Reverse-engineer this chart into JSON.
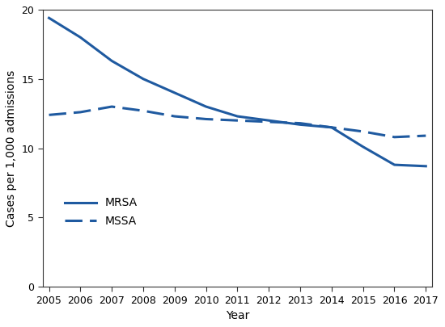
{
  "years": [
    2005,
    2006,
    2007,
    2008,
    2009,
    2010,
    2011,
    2012,
    2013,
    2014,
    2015,
    2016,
    2017
  ],
  "mrsa": [
    19.4,
    18.0,
    16.3,
    15.0,
    14.0,
    13.0,
    12.3,
    12.0,
    11.7,
    11.5,
    10.1,
    8.8,
    8.7
  ],
  "mssa": [
    12.4,
    12.6,
    13.0,
    12.7,
    12.3,
    12.1,
    12.0,
    11.9,
    11.8,
    11.5,
    11.2,
    10.8,
    10.9
  ],
  "mrsa_label": "MRSA",
  "mssa_label": "MSSA",
  "ylabel": "Cases per 1,000 admissions",
  "xlabel": "Year",
  "ylim": [
    0,
    20
  ],
  "yticks": [
    0,
    5,
    10,
    15,
    20
  ],
  "line_color": "#1f5aa0",
  "linewidth": 2.2,
  "legend_fontsize": 10,
  "axis_fontsize": 10,
  "tick_fontsize": 9
}
